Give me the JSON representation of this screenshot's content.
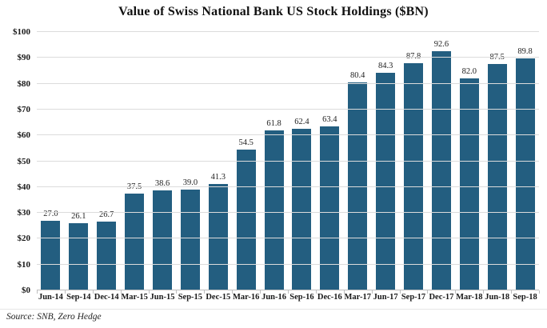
{
  "title": "Value of Swiss National Bank US Stock Holdings ($BN)",
  "source": "Source: SNB, Zero Hedge",
  "colors": {
    "bar": "#235E80",
    "grid": "#dcdcdc",
    "baseline": "#bfbfbf",
    "text": "#1a1a1a"
  },
  "chart_data": {
    "type": "bar",
    "categories": [
      "Jun-14",
      "Sep-14",
      "Dec-14",
      "Mar-15",
      "Jun-15",
      "Sep-15",
      "Dec-15",
      "Mar-16",
      "Jun-16",
      "Sep-16",
      "Dec-16",
      "Mar-17",
      "Jun-17",
      "Sep-17",
      "Dec-17",
      "Mar-18",
      "Jun-18",
      "Sep-18"
    ],
    "values": [
      27.0,
      26.1,
      26.7,
      37.5,
      38.6,
      39.0,
      41.3,
      54.5,
      61.8,
      62.4,
      63.4,
      80.4,
      84.3,
      87.8,
      92.6,
      82.0,
      87.5,
      89.8
    ],
    "value_labels": [
      "27.0",
      "26.1",
      "26.7",
      "37.5",
      "38.6",
      "39.0",
      "41.3",
      "54.5",
      "61.8",
      "62.4",
      "63.4",
      "80.4",
      "84.3",
      "87.8",
      "92.6",
      "82.0",
      "87.5",
      "89.8"
    ],
    "title": "Value of Swiss National Bank US Stock Holdings ($BN)",
    "xlabel": "",
    "ylabel": "",
    "ylim": [
      0,
      100
    ],
    "ytick_step": 10,
    "ytick_labels": [
      "$0",
      "$10",
      "$20",
      "$30",
      "$40",
      "$50",
      "$60",
      "$70",
      "$80",
      "$90",
      "$100"
    ],
    "grid": true,
    "legend": "none",
    "bar_value_labels_shown": true
  }
}
